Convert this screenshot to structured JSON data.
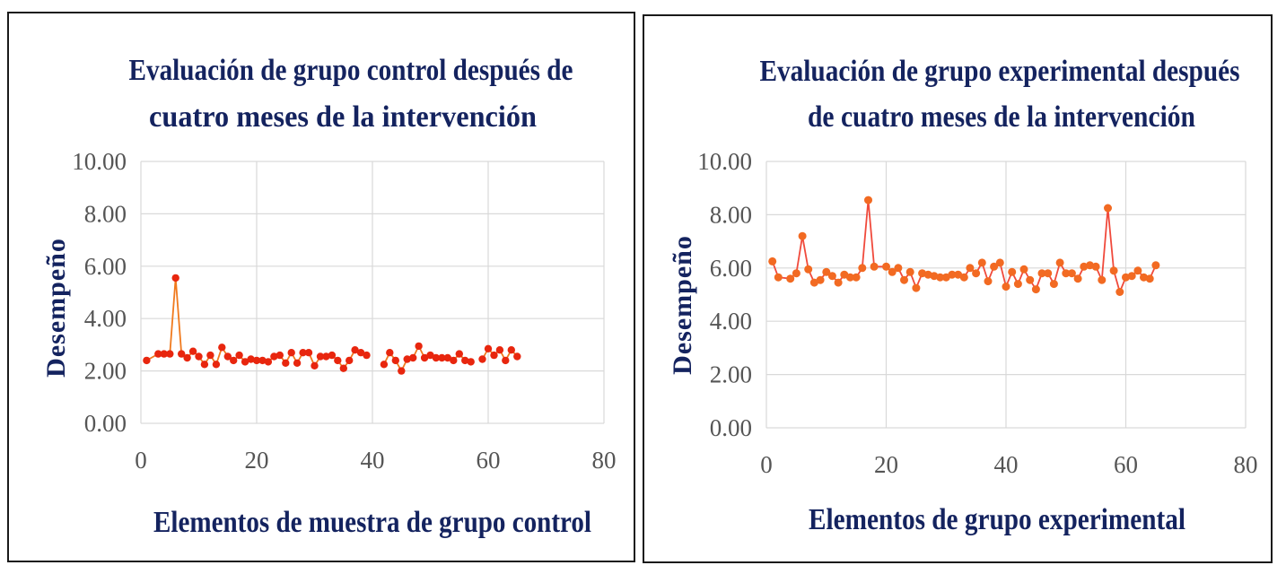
{
  "chart_data": [
    {
      "type": "line",
      "title": [
        "Evaluación de grupo control después de",
        "cuatro meses de la intervención"
      ],
      "xlabel": "Elementos de muestra de grupo control",
      "ylabel": "Desempeño",
      "xlim": [
        0,
        80
      ],
      "ylim": [
        0,
        10
      ],
      "xticks": [
        "0",
        "20",
        "40",
        "60",
        "80"
      ],
      "yticks": [
        "0.00",
        "2.00",
        "4.00",
        "6.00",
        "8.00",
        "10.00"
      ],
      "grid": true,
      "line_color": "#f07a1e",
      "marker_color": "#e8260e",
      "x": [
        1,
        3,
        4,
        5,
        6,
        7,
        8,
        9,
        10,
        11,
        12,
        13,
        14,
        15,
        16,
        17,
        18,
        19,
        20,
        21,
        22,
        23,
        24,
        25,
        26,
        27,
        28,
        29,
        30,
        31,
        32,
        33,
        34,
        35,
        36,
        37,
        38,
        39,
        42,
        43,
        44,
        45,
        46,
        47,
        48,
        49,
        50,
        51,
        52,
        53,
        54,
        55,
        56,
        57,
        59,
        60,
        61,
        62,
        63,
        64,
        65
      ],
      "y": [
        2.4,
        2.65,
        2.65,
        2.65,
        5.55,
        2.65,
        2.5,
        2.75,
        2.55,
        2.25,
        2.6,
        2.25,
        2.9,
        2.55,
        2.4,
        2.6,
        2.35,
        2.45,
        2.4,
        2.4,
        2.35,
        2.55,
        2.6,
        2.3,
        2.7,
        2.3,
        2.7,
        2.7,
        2.2,
        2.55,
        2.55,
        2.6,
        2.4,
        2.1,
        2.4,
        2.8,
        2.7,
        2.6,
        2.25,
        2.7,
        2.4,
        2.0,
        2.45,
        2.5,
        2.95,
        2.5,
        2.6,
        2.5,
        2.5,
        2.5,
        2.4,
        2.65,
        2.4,
        2.35,
        2.45,
        2.85,
        2.6,
        2.8,
        2.4,
        2.8,
        2.55
      ],
      "segments": [
        [
          0,
          37
        ],
        [
          38,
          53
        ],
        [
          54,
          60
        ]
      ]
    },
    {
      "type": "line",
      "title": [
        "Evaluación de grupo experimental después",
        "de cuatro meses de la intervención"
      ],
      "xlabel": "Elementos de grupo experimental",
      "ylabel": "Desempeño",
      "xlim": [
        0,
        80
      ],
      "ylim": [
        0,
        10
      ],
      "xticks": [
        "0",
        "20",
        "40",
        "60",
        "80"
      ],
      "yticks": [
        "0.00",
        "2.00",
        "4.00",
        "6.00",
        "8.00",
        "10.00"
      ],
      "grid": true,
      "line_color": "#f04a3c",
      "marker_color": "#f26a22",
      "x": [
        1,
        2,
        4,
        5,
        6,
        7,
        8,
        9,
        10,
        11,
        12,
        13,
        14,
        15,
        16,
        17,
        18,
        20,
        21,
        22,
        23,
        24,
        25,
        26,
        27,
        28,
        29,
        30,
        31,
        32,
        33,
        34,
        35,
        36,
        37,
        38,
        39,
        40,
        41,
        42,
        43,
        44,
        45,
        46,
        47,
        48,
        49,
        50,
        51,
        52,
        53,
        54,
        55,
        56,
        57,
        58,
        59,
        60,
        61,
        62,
        63,
        64,
        65
      ],
      "y": [
        6.25,
        5.65,
        5.6,
        5.8,
        7.2,
        5.95,
        5.45,
        5.55,
        5.85,
        5.7,
        5.45,
        5.75,
        5.65,
        5.65,
        6.0,
        8.55,
        6.05,
        6.05,
        5.85,
        6.0,
        5.55,
        5.85,
        5.25,
        5.8,
        5.75,
        5.7,
        5.65,
        5.65,
        5.75,
        5.75,
        5.65,
        6.0,
        5.8,
        6.2,
        5.5,
        6.05,
        6.2,
        5.3,
        5.85,
        5.4,
        5.95,
        5.55,
        5.2,
        5.8,
        5.8,
        5.4,
        6.2,
        5.8,
        5.8,
        5.6,
        6.05,
        6.1,
        6.05,
        5.55,
        8.25,
        5.9,
        5.1,
        5.65,
        5.7,
        5.9,
        5.65,
        5.6,
        6.1
      ],
      "segments": [
        [
          0,
          62
        ]
      ]
    }
  ]
}
